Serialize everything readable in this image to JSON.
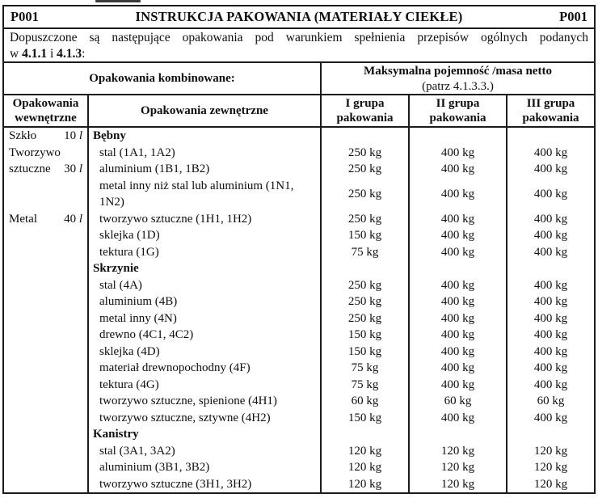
{
  "title_row": {
    "code_left": "P001",
    "title": "INSTRUKCJA PAKOWANIA (MATERIAŁY CIEKŁE)",
    "code_right": "P001"
  },
  "intro": {
    "line1": "Dopuszczone są następujące opakowania pod warunkiem spełnienia przepisów ogólnych podanych",
    "line2_prefix": "w ",
    "ref1": "4.1.1",
    "line2_mid": " i ",
    "ref2": "4.1.3",
    "line2_suffix": ":"
  },
  "group_header": {
    "combined_label": "Opakowania kombinowane:",
    "max_capacity_label": "Maksymalna pojemność /masa netto",
    "max_capacity_note": "(patrz 4.1.3.3.)"
  },
  "columns": {
    "inner": "Opakowania wewnętrzne",
    "outer": "Opakowania zewnętrzne",
    "group1": "I grupa pakowania",
    "group2": "II grupa pakowania",
    "group3": "III grupa pakowania"
  },
  "inner_packagings": [
    {
      "row": 0,
      "material": "Szkło",
      "qty": "10",
      "unit": "l"
    },
    {
      "row": 1,
      "material": "Tworzywo",
      "qty": "",
      "unit": ""
    },
    {
      "row": 2,
      "material": "sztuczne",
      "qty": "30",
      "unit": "l"
    },
    {
      "row": 4,
      "material": "Metal",
      "qty": "40",
      "unit": "l"
    }
  ],
  "rows": [
    {
      "type": "section",
      "label": "Bębny"
    },
    {
      "type": "item",
      "label": "stal (1A1, 1A2)",
      "values": [
        "250 kg",
        "400 kg",
        "400 kg"
      ]
    },
    {
      "type": "item",
      "label": "aluminium (1B1, 1B2)",
      "values": [
        "250 kg",
        "400 kg",
        "400 kg"
      ]
    },
    {
      "type": "item",
      "label": "metal inny niż stal lub aluminium (1N1, 1N2)",
      "values": [
        "250 kg",
        "400 kg",
        "400 kg"
      ],
      "tall": true
    },
    {
      "type": "item",
      "label": "tworzywo sztuczne (1H1, 1H2)",
      "values": [
        "250 kg",
        "400 kg",
        "400 kg"
      ]
    },
    {
      "type": "item",
      "label": "sklejka (1D)",
      "values": [
        "150 kg",
        "400 kg",
        "400 kg"
      ]
    },
    {
      "type": "item",
      "label": "tektura (1G)",
      "values": [
        "75 kg",
        "400 kg",
        "400 kg"
      ]
    },
    {
      "type": "section",
      "label": "Skrzynie"
    },
    {
      "type": "item",
      "label": "stal (4A)",
      "values": [
        "250 kg",
        "400 kg",
        "400 kg"
      ]
    },
    {
      "type": "item",
      "label": "aluminium (4B)",
      "values": [
        "250 kg",
        "400 kg",
        "400 kg"
      ]
    },
    {
      "type": "item",
      "label": "metal inny (4N)",
      "values": [
        "250 kg",
        "400 kg",
        "400 kg"
      ]
    },
    {
      "type": "item",
      "label": "drewno (4C1, 4C2)",
      "values": [
        "150 kg",
        "400 kg",
        "400 kg"
      ]
    },
    {
      "type": "item",
      "label": "sklejka (4D)",
      "values": [
        "150 kg",
        "400 kg",
        "400 kg"
      ]
    },
    {
      "type": "item",
      "label": "materiał drewnopochodny (4F)",
      "values": [
        "75 kg",
        "400 kg",
        "400 kg"
      ]
    },
    {
      "type": "item",
      "label": "tektura (4G)",
      "values": [
        "75 kg",
        "400 kg",
        "400 kg"
      ]
    },
    {
      "type": "item",
      "label": "tworzywo sztuczne, spienione (4H1)",
      "values": [
        "60 kg",
        "60 kg",
        "60 kg"
      ]
    },
    {
      "type": "item",
      "label": "tworzywo sztuczne, sztywne (4H2)",
      "values": [
        "150 kg",
        "400 kg",
        "400 kg"
      ]
    },
    {
      "type": "section",
      "label": "Kanistry"
    },
    {
      "type": "item",
      "label": "stal (3A1, 3A2)",
      "values": [
        "120 kg",
        "120 kg",
        "120 kg"
      ]
    },
    {
      "type": "item",
      "label": "aluminium (3B1, 3B2)",
      "values": [
        "120 kg",
        "120 kg",
        "120 kg"
      ]
    },
    {
      "type": "item",
      "label": "tworzywo sztuczne (3H1, 3H2)",
      "values": [
        "120 kg",
        "120 kg",
        "120 kg"
      ]
    }
  ],
  "colors": {
    "border": "#1b1b1b",
    "text": "#0e0e0e",
    "background": "#ffffff"
  }
}
